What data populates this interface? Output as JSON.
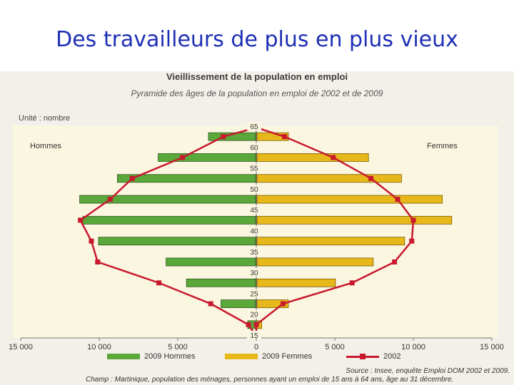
{
  "slide": {
    "title": "Des travailleurs de plus en plus vieux"
  },
  "chart_data": {
    "type": "bar",
    "title": "Vieillissement de la population en emploi",
    "subtitle": "Pyramide des âges de la population en emploi de 2002 et de 2009",
    "unit": "Unité : nombre",
    "left_label": "Hommes",
    "right_label": "Femmes",
    "age_ticks": [
      "65",
      "60",
      "55",
      "50",
      "45",
      "40",
      "35",
      "30",
      "25",
      "20",
      "15"
    ],
    "x_ticks": [
      "15 000",
      "10 000",
      "5 000",
      "0",
      "5 000",
      "10 000",
      "15 000"
    ],
    "xlim": [
      -15000,
      15000
    ],
    "ylim": [
      15,
      65
    ],
    "age_groups": [
      62.5,
      57.5,
      52.5,
      47.5,
      42.5,
      37.5,
      32.5,
      27.5,
      22.5,
      17.5
    ],
    "series": [
      {
        "name": "2009 Hommes",
        "color": "#5aa83a",
        "values": [
          3000,
          6200,
          8800,
          11200,
          11000,
          10000,
          5700,
          4400,
          2200,
          500
        ]
      },
      {
        "name": "2009 Femmes",
        "color": "#e7b819",
        "values": [
          2000,
          7100,
          9200,
          11800,
          12400,
          9400,
          7400,
          5000,
          2000,
          300
        ]
      },
      {
        "name": "2002",
        "color": "#c8192e",
        "men": [
          2100,
          4700,
          7900,
          9300,
          11200,
          10500,
          10100,
          6200,
          2900,
          500
        ],
        "women": [
          1800,
          4900,
          7300,
          9000,
          10000,
          9900,
          8800,
          6100,
          1700,
          0
        ]
      }
    ],
    "legend": [
      "2009 Hommes",
      "2009 Femmes",
      "2002"
    ],
    "source": "Source : Insee, enquête Emploi DOM 2002 et 2009.",
    "champ": "Champ : Martinique, population des ménages, personnes ayant un emploi de 15 ans à 64 ans, âge au 31 décembre."
  }
}
